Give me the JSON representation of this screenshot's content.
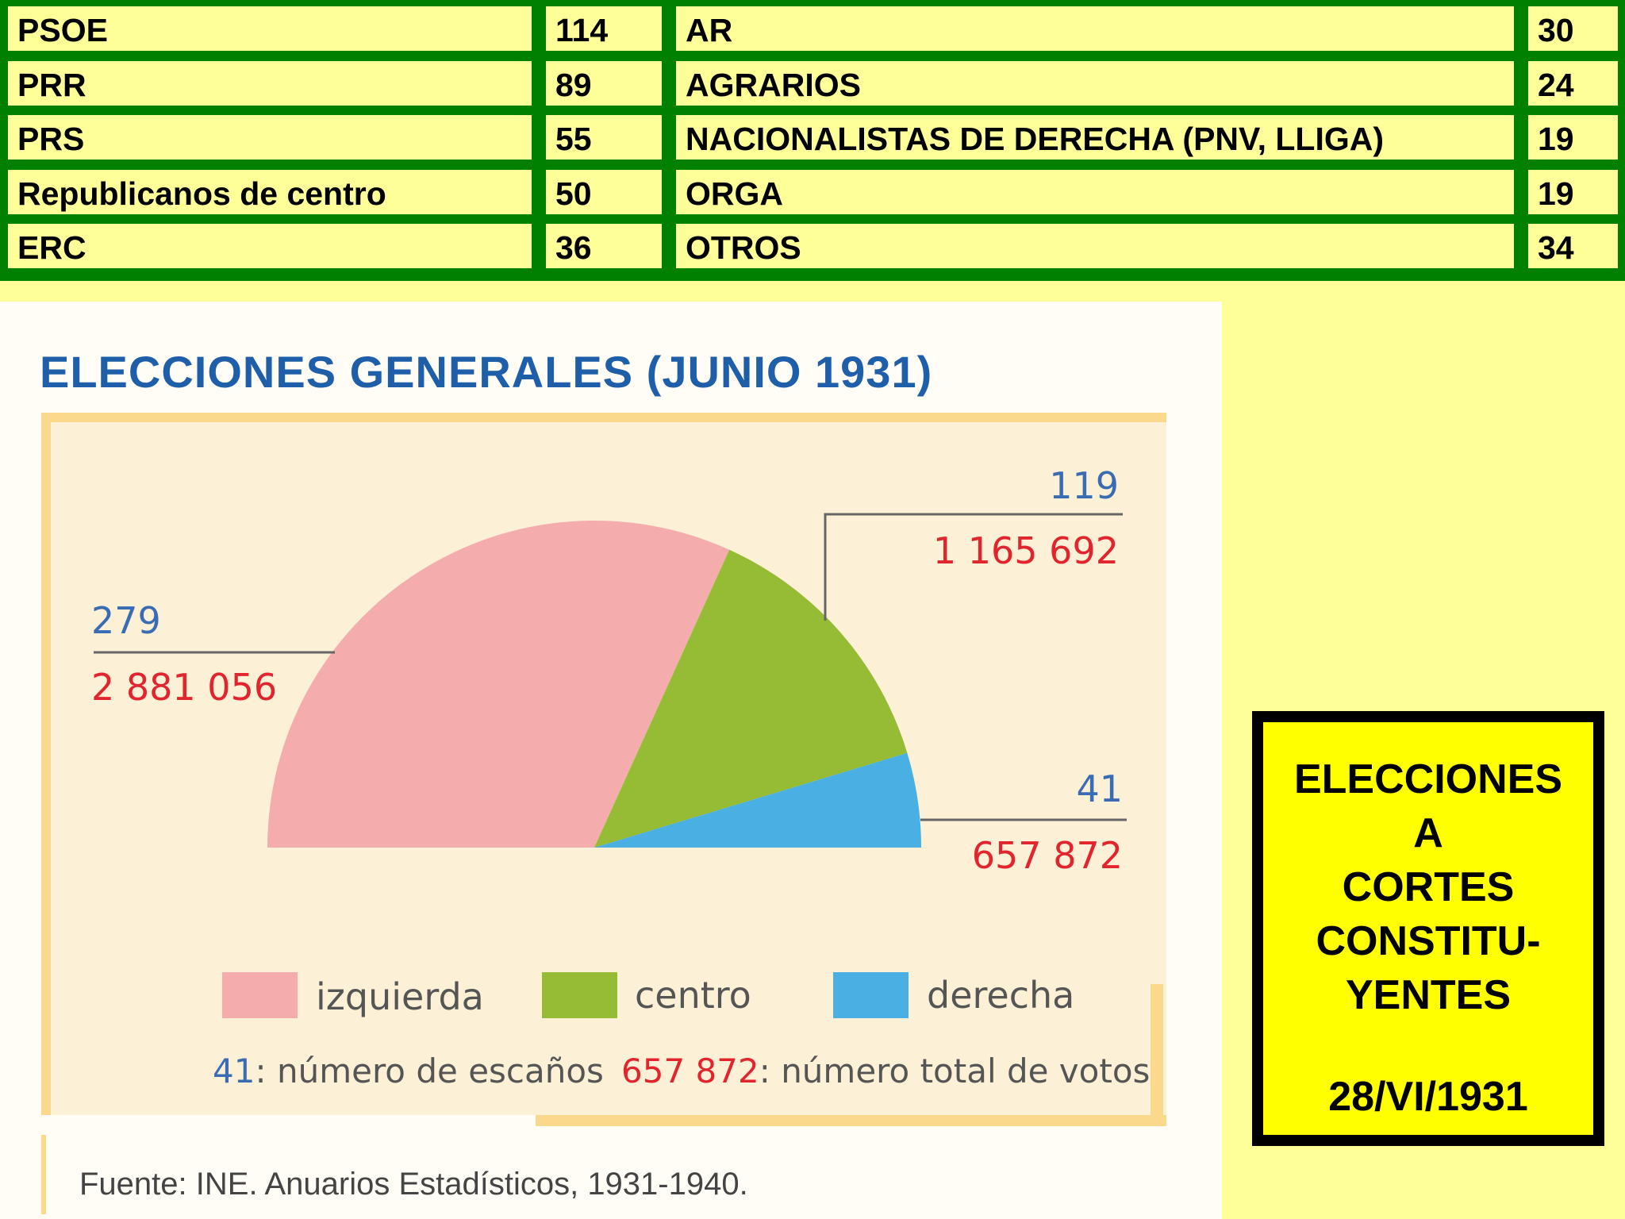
{
  "table": {
    "rows": [
      {
        "party1": "PSOE",
        "seats1": "114",
        "party2": "AR",
        "seats2": "30"
      },
      {
        "party1": "PRR",
        "seats1": "89",
        "party2": "AGRARIOS",
        "seats2": "24"
      },
      {
        "party1": "PRS",
        "seats1": "55",
        "party2": "NACIONALISTAS DE DERECHA (PNV, LLIGA)",
        "seats2": "19"
      },
      {
        "party1": "Republicanos de centro",
        "seats1": "50",
        "party2": "ORGA",
        "seats2": "19"
      },
      {
        "party1": "ERC",
        "seats1": "36",
        "party2": "OTROS",
        "seats2": "34"
      }
    ]
  },
  "chart_data": {
    "type": "pie",
    "title": "ELECCIONES GENERALES (JUNIO 1931)",
    "style": "semicircle",
    "categories": [
      "izquierda",
      "centro",
      "derecha"
    ],
    "seats": [
      279,
      119,
      41
    ],
    "votes": [
      2881056,
      1165692,
      657872
    ],
    "seat_labels": [
      "279",
      "119",
      "41"
    ],
    "vote_labels": [
      "2 881 056",
      "1 165 692",
      "657 872"
    ],
    "colors": [
      "#f4acac",
      "#96bb35",
      "#4aafe3"
    ],
    "legend_note": {
      "seats_example": "41",
      "seats_text": ": número de escaños",
      "votes_example": "657 872",
      "votes_text": ": número total de votos"
    },
    "seat_color": "#3a6cb3",
    "vote_color": "#e2242c",
    "source": "Fuente: INE. Anuarios Estadísticos, 1931-1940."
  },
  "side_box": {
    "lines": [
      "ELECCIONES",
      "A",
      "CORTES",
      "CONSTITU-",
      "YENTES"
    ],
    "date": "28/VI/1931"
  }
}
